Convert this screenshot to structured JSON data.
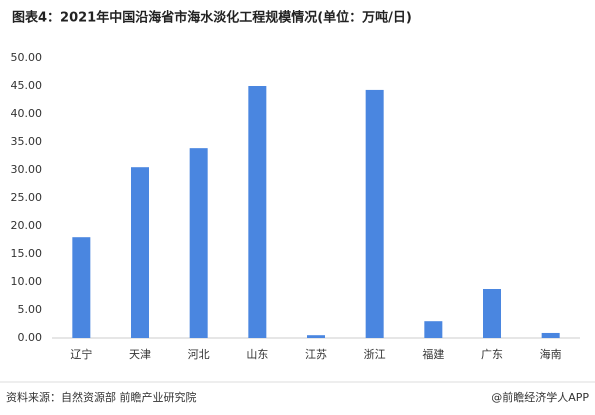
{
  "chart_data": {
    "type": "bar",
    "title": "图表4：2021年中国沿海省市海水淡化工程规模情况(单位：万吨/日)",
    "categories": [
      "辽宁",
      "天津",
      "河北",
      "山东",
      "江苏",
      "浙江",
      "福建",
      "广东",
      "海南"
    ],
    "values": [
      18.0,
      30.5,
      33.9,
      45.0,
      0.5,
      44.3,
      3.0,
      8.75,
      0.9
    ],
    "color": "#4a86e0",
    "ylim": [
      0,
      50
    ],
    "yticks": [
      {
        "value": 0,
        "label": "0.00"
      },
      {
        "value": 5,
        "label": "5.00"
      },
      {
        "value": 10,
        "label": "10.00"
      },
      {
        "value": 15,
        "label": "15.00"
      },
      {
        "value": 20,
        "label": "20.00"
      },
      {
        "value": 25,
        "label": "25.00"
      },
      {
        "value": 30,
        "label": "30.00"
      },
      {
        "value": 35,
        "label": "35.00"
      },
      {
        "value": 40,
        "label": "40.00"
      },
      {
        "value": 45,
        "label": "45.00"
      },
      {
        "value": 50,
        "label": "50.00"
      }
    ],
    "grid": false,
    "source": "资料来源：自然资源部 前瞻产业研究院",
    "credit": "@前瞻经济学人APP"
  }
}
